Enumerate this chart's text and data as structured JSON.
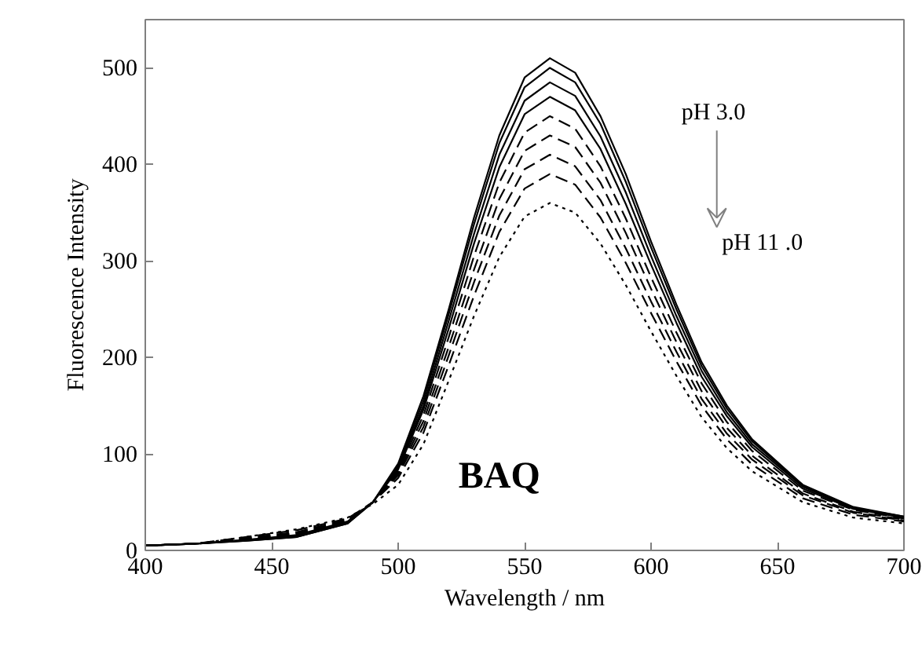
{
  "chart_data": {
    "type": "line",
    "xlabel": "Wavelength / nm",
    "ylabel": "Fluorescence Intensity",
    "x": [
      400,
      420,
      440,
      460,
      480,
      490,
      500,
      510,
      520,
      530,
      540,
      550,
      560,
      570,
      580,
      590,
      600,
      610,
      620,
      630,
      640,
      660,
      680,
      700
    ],
    "xlim": [
      400,
      700
    ],
    "xticks": [
      400,
      450,
      500,
      550,
      600,
      650,
      700
    ],
    "ylim": [
      0,
      550
    ],
    "yticks": [
      0,
      100,
      200,
      300,
      400,
      500
    ],
    "grid": false,
    "marker": "none",
    "series": [
      {
        "color": "#000000",
        "line_style": "solid",
        "values": [
          5,
          7,
          10,
          14,
          28,
          50,
          90,
          160,
          250,
          345,
          430,
          490,
          510,
          495,
          450,
          390,
          320,
          255,
          195,
          150,
          115,
          68,
          45,
          35
        ]
      },
      {
        "color": "#000000",
        "line_style": "solid",
        "values": [
          5,
          7,
          10,
          14,
          28,
          50,
          88,
          155,
          245,
          338,
          422,
          480,
          500,
          485,
          442,
          382,
          314,
          250,
          191,
          147,
          113,
          67,
          44,
          35
        ]
      },
      {
        "color": "#000000",
        "line_style": "solid",
        "values": [
          5,
          7,
          11,
          15,
          29,
          50,
          86,
          150,
          238,
          328,
          410,
          466,
          485,
          471,
          429,
          371,
          305,
          243,
          186,
          143,
          110,
          66,
          44,
          34
        ]
      },
      {
        "color": "#000000",
        "line_style": "solid",
        "values": [
          5,
          7,
          11,
          16,
          30,
          50,
          84,
          146,
          230,
          318,
          397,
          452,
          470,
          456,
          416,
          359,
          296,
          236,
          180,
          139,
          107,
          64,
          43,
          34
        ]
      },
      {
        "color": "#000000",
        "line_style": "dashed",
        "values": [
          5,
          7,
          12,
          17,
          30,
          50,
          82,
          140,
          221,
          305,
          381,
          433,
          450,
          437,
          398,
          344,
          283,
          226,
          173,
          133,
          103,
          62,
          42,
          33
        ]
      },
      {
        "color": "#000000",
        "line_style": "dashed",
        "values": [
          5,
          7,
          12,
          18,
          31,
          50,
          80,
          134,
          211,
          291,
          364,
          414,
          430,
          418,
          381,
          329,
          271,
          216,
          165,
          127,
          98,
          59,
          40,
          32
        ]
      },
      {
        "color": "#000000",
        "line_style": "dashed",
        "values": [
          5,
          7,
          13,
          19,
          32,
          50,
          78,
          128,
          202,
          278,
          347,
          395,
          410,
          398,
          363,
          313,
          258,
          206,
          157,
          121,
          94,
          57,
          39,
          31
        ]
      },
      {
        "color": "#000000",
        "line_style": "dashed",
        "values": [
          5,
          7,
          14,
          21,
          33,
          50,
          75,
          122,
          192,
          264,
          330,
          375,
          390,
          379,
          345,
          298,
          246,
          196,
          150,
          115,
          89,
          54,
          37,
          30
        ]
      },
      {
        "color": "#000000",
        "line_style": "dotted",
        "values": [
          5,
          7,
          14,
          22,
          34,
          48,
          68,
          110,
          176,
          243,
          304,
          346,
          360,
          350,
          318,
          275,
          227,
          181,
          138,
          106,
          82,
          50,
          34,
          28
        ]
      }
    ],
    "annotations": [
      "pH 3.0",
      "pH 11 .0",
      "BAQ"
    ]
  }
}
